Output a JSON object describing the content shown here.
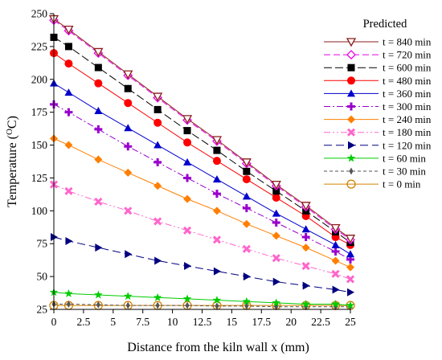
{
  "chart_data": {
    "type": "line",
    "xlabel": "Distance from the kiln wall x (mm)",
    "ylabel_main": "Temperature (",
    "ylabel_sup": "O",
    "ylabel_tail": "C)",
    "xlim": [
      0,
      25
    ],
    "ylim": [
      25,
      250
    ],
    "xticks": [
      "0",
      "2.5",
      "5",
      "7.5",
      "10",
      "12.5",
      "15",
      "17.5",
      "20",
      "22.5",
      "25"
    ],
    "yticks": [
      "25",
      "50",
      "75",
      "100",
      "125",
      "150",
      "175",
      "200",
      "225",
      "250"
    ],
    "legend_title": "Predicted",
    "legend_position": "top-right",
    "x": [
      0,
      1.25,
      3.75,
      6.25,
      8.75,
      11.25,
      13.75,
      16.25,
      18.75,
      21.25,
      23.75,
      25
    ],
    "series": [
      {
        "name": "t = 840 min",
        "color": "#8b1c1c",
        "marker": "triangle-down-open",
        "dash": "",
        "values": [
          246,
          238,
          221,
          204,
          187,
          170,
          154,
          137,
          120,
          104,
          87,
          79
        ]
      },
      {
        "name": "t = 720 min",
        "color": "#e600e6",
        "marker": "diamond-open",
        "dash": "8 4",
        "values": [
          245,
          237,
          220,
          203,
          186,
          169,
          153,
          136,
          119,
          103,
          86,
          78
        ]
      },
      {
        "name": "t = 600 min",
        "color": "#000000",
        "marker": "square",
        "dash": "10 4",
        "values": [
          232,
          225,
          209,
          193,
          177,
          161,
          146,
          130,
          115,
          100,
          84,
          76
        ]
      },
      {
        "name": "t = 480 min",
        "color": "#ff0000",
        "marker": "circle",
        "dash": "",
        "values": [
          220,
          212,
          197,
          182,
          167,
          152,
          138,
          124,
          110,
          96,
          80,
          74
        ]
      },
      {
        "name": "t = 360 min",
        "color": "#0000cc",
        "marker": "triangle-up",
        "dash": "",
        "values": [
          197,
          190,
          176,
          163,
          150,
          137,
          124,
          111,
          98,
          86,
          74,
          67
        ]
      },
      {
        "name": "t = 300 min",
        "color": "#9900cc",
        "marker": "plus",
        "dash": "8 3 2 3",
        "values": [
          181,
          175,
          162,
          149,
          137,
          125,
          113,
          102,
          91,
          80,
          69,
          63
        ]
      },
      {
        "name": "t = 240 min",
        "color": "#ff7f00",
        "marker": "diamond",
        "dash": "",
        "values": [
          155,
          150,
          139,
          129,
          119,
          109,
          100,
          90,
          81,
          72,
          62,
          57
        ]
      },
      {
        "name": "t = 180 min",
        "color": "#ff66cc",
        "marker": "x",
        "dash": "8 3 2 3 2 3",
        "values": [
          120,
          115,
          107,
          100,
          92,
          85,
          78,
          71,
          64,
          58,
          52,
          48
        ]
      },
      {
        "name": "t = 120 min",
        "color": "#000080",
        "marker": "triangle-right",
        "dash": "10 5",
        "values": [
          80,
          77,
          72,
          67,
          62,
          58,
          54,
          50,
          46,
          43,
          40,
          38
        ]
      },
      {
        "name": "t = 60 min",
        "color": "#00cc00",
        "marker": "star",
        "dash": "",
        "values": [
          38,
          37,
          36,
          35,
          34,
          33,
          32,
          31,
          30,
          29,
          29,
          28
        ]
      },
      {
        "name": "t = 30 min",
        "color": "#555555",
        "marker": "thin-diamond",
        "dash": "4 3",
        "values": [
          29,
          29,
          28.5,
          28,
          28,
          28,
          27.5,
          27.5,
          27,
          27,
          27,
          27
        ]
      },
      {
        "name": "t = 0 min",
        "color": "#d08000",
        "marker": "circle-open",
        "dash": "",
        "values": [
          28,
          28,
          28,
          28,
          28,
          28,
          28,
          28,
          28,
          28,
          28,
          28
        ]
      }
    ]
  }
}
